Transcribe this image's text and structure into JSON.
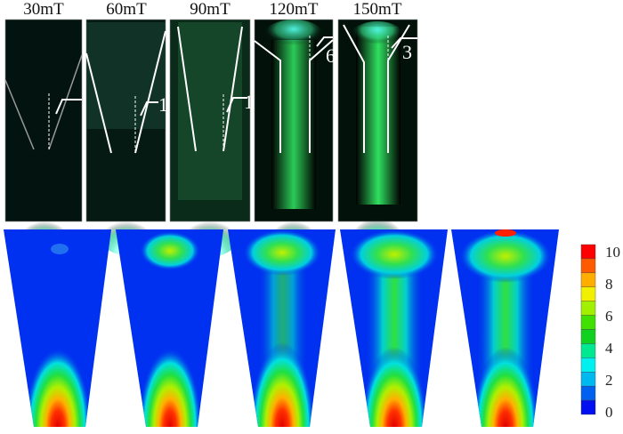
{
  "panels": [
    {
      "label": "30mT",
      "annotation": ""
    },
    {
      "label": "60mT",
      "annotation": "1"
    },
    {
      "label": "90mT",
      "annotation": "1"
    },
    {
      "label": "120mT",
      "annotation": "6"
    },
    {
      "label": "150mT",
      "annotation": "3"
    }
  ],
  "colorbar": {
    "ticks": [
      "10",
      "8",
      "6",
      "4",
      "2",
      "0"
    ],
    "colors": [
      "#ff0000",
      "#ff5a00",
      "#ffae00",
      "#f0f000",
      "#a0f000",
      "#40e000",
      "#10d020",
      "#00e890",
      "#00f0f0",
      "#00b8f0",
      "#0060f0",
      "#0010f0"
    ]
  }
}
